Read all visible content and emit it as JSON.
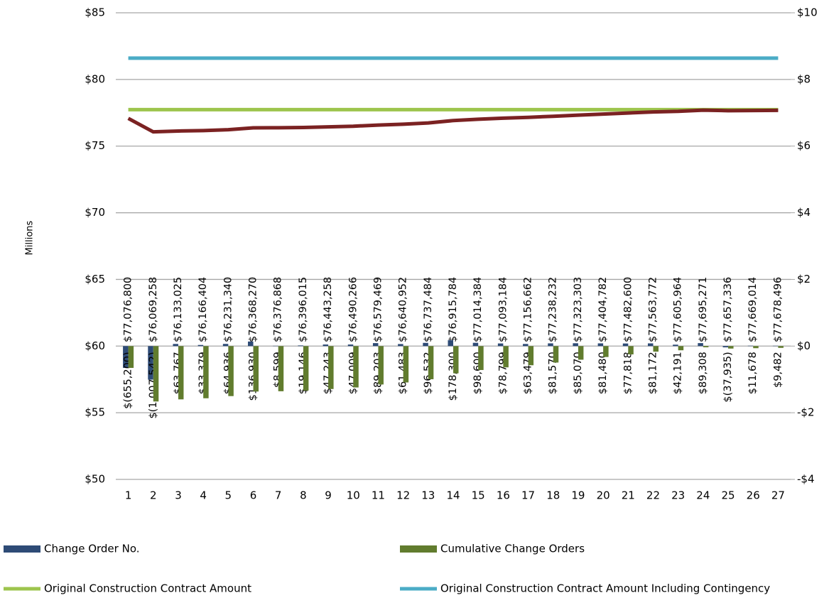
{
  "chart_data": {
    "type": "combo",
    "ylabel": "Millions",
    "categories": [
      "1",
      "2",
      "3",
      "4",
      "5",
      "6",
      "7",
      "8",
      "9",
      "10",
      "11",
      "12",
      "13",
      "14",
      "15",
      "16",
      "17",
      "18",
      "19",
      "20",
      "21",
      "22",
      "23",
      "24",
      "25",
      "26",
      "27"
    ],
    "ylim": [
      50,
      85
    ],
    "yticks": [
      {
        "value": 50,
        "label": "$50"
      },
      {
        "value": 55,
        "label": "$55"
      },
      {
        "value": 60,
        "label": "$60"
      },
      {
        "value": 65,
        "label": "$65"
      },
      {
        "value": 70,
        "label": "$70"
      },
      {
        "value": 75,
        "label": "$75"
      },
      {
        "value": 80,
        "label": "$80"
      },
      {
        "value": 85,
        "label": "$85"
      }
    ],
    "y2lim": [
      -4,
      10
    ],
    "y2ticks": [
      {
        "value": -4,
        "label": "-$4"
      },
      {
        "value": -2,
        "label": "-$2"
      },
      {
        "value": 0,
        "label": "$0"
      },
      {
        "value": 2,
        "label": "$2"
      },
      {
        "value": 4,
        "label": "$4"
      },
      {
        "value": 6,
        "label": "$6"
      },
      {
        "value": 8,
        "label": "$8"
      },
      {
        "value": 10,
        "label": "$10"
      }
    ],
    "grid": true,
    "legend": "bottom",
    "series": [
      {
        "name": "Change Order No.",
        "type": "bar",
        "axis": "y2",
        "color": "#2e4b76",
        "values": [
          -0.6552,
          -1.007542,
          0.063767,
          0.033379,
          0.064936,
          0.13693,
          0.008599,
          0.019146,
          0.047243,
          0.047009,
          0.089203,
          0.061483,
          0.096532,
          0.1783,
          0.0986,
          0.078799,
          0.063479,
          0.08157,
          0.08507,
          0.08148,
          0.077818,
          0.081172,
          0.042191,
          0.089308,
          -0.037935,
          0.011678,
          0.009482
        ],
        "value_labels": [
          "$(655,200)",
          "$(1,007,542)",
          "$63,767",
          "$33,379",
          "$64,936",
          "$136,930",
          "$8,599",
          "$19,146",
          "$47,243",
          "$47,009",
          "$89,203",
          "$61,483",
          "$96,532",
          "$178,300",
          "$98,600",
          "$78,799",
          "$63,479",
          "$81,570",
          "$85,070",
          "$81,480",
          "$77,818",
          "$81,172",
          "$42,191",
          "$89,308",
          "$(37,935)",
          "$11,678",
          "$9,482"
        ]
      },
      {
        "name": "Cumulative Change Orders",
        "type": "bar",
        "axis": "y2",
        "color": "#617c2e",
        "values": [
          -0.6552,
          -1.662742,
          -1.598975,
          -1.565596,
          -1.50066,
          -1.36373,
          -1.355132,
          -1.335985,
          -1.288742,
          -1.241734,
          -1.152531,
          -1.091048,
          -0.994516,
          -0.816216,
          -0.717616,
          -0.638816,
          -0.575338,
          -0.493768,
          -0.408697,
          -0.327218,
          -0.2494,
          -0.168228,
          -0.126036,
          -0.036729,
          -0.074664,
          -0.062986,
          -0.053504
        ]
      },
      {
        "name": "Original Construction Contract Amount",
        "type": "line",
        "color": "#9dc44d",
        "values": [
          77.732,
          77.732,
          77.732,
          77.732,
          77.732,
          77.732,
          77.732,
          77.732,
          77.732,
          77.732,
          77.732,
          77.732,
          77.732,
          77.732,
          77.732,
          77.732,
          77.732,
          77.732,
          77.732,
          77.732,
          77.732,
          77.732,
          77.732,
          77.732,
          77.732,
          77.732,
          77.732
        ]
      },
      {
        "name": "Original Construction Contract Amount Including Contingency",
        "type": "line",
        "color": "#4bacc6",
        "values": [
          81.6,
          81.6,
          81.6,
          81.6,
          81.6,
          81.6,
          81.6,
          81.6,
          81.6,
          81.6,
          81.6,
          81.6,
          81.6,
          81.6,
          81.6,
          81.6,
          81.6,
          81.6,
          81.6,
          81.6,
          81.6,
          81.6,
          81.6,
          81.6,
          81.6,
          81.6,
          81.6
        ]
      },
      {
        "type": "line",
        "color": "#7b2222",
        "values": [
          77.0768,
          76.069258,
          76.133025,
          76.166404,
          76.23134,
          76.36827,
          76.376868,
          76.396015,
          76.443258,
          76.490266,
          76.579469,
          76.640952,
          76.737484,
          76.915784,
          77.014384,
          77.093184,
          77.156662,
          77.238232,
          77.323303,
          77.404782,
          77.4826,
          77.563772,
          77.605964,
          77.695271,
          77.657336,
          77.669014,
          77.678496
        ],
        "value_labels": [
          "$77,076,800",
          "$76,069,258",
          "$76,133,025",
          "$76,166,404",
          "$76,231,340",
          "$76,368,270",
          "$76,376,868",
          "$76,396,015",
          "$76,443,258",
          "$76,490,266",
          "$76,579,469",
          "$76,640,952",
          "$76,737,484",
          "$76,915,784",
          "$77,014,384",
          "$77,093,184",
          "$77,156,662",
          "$77,238,232",
          "$77,323,303",
          "$77,404,782",
          "$77,482,600",
          "$77,563,772",
          "$77,605,964",
          "$77,695,271",
          "$77,657,336",
          "$77,669,014",
          "$77,678,496"
        ]
      }
    ]
  }
}
